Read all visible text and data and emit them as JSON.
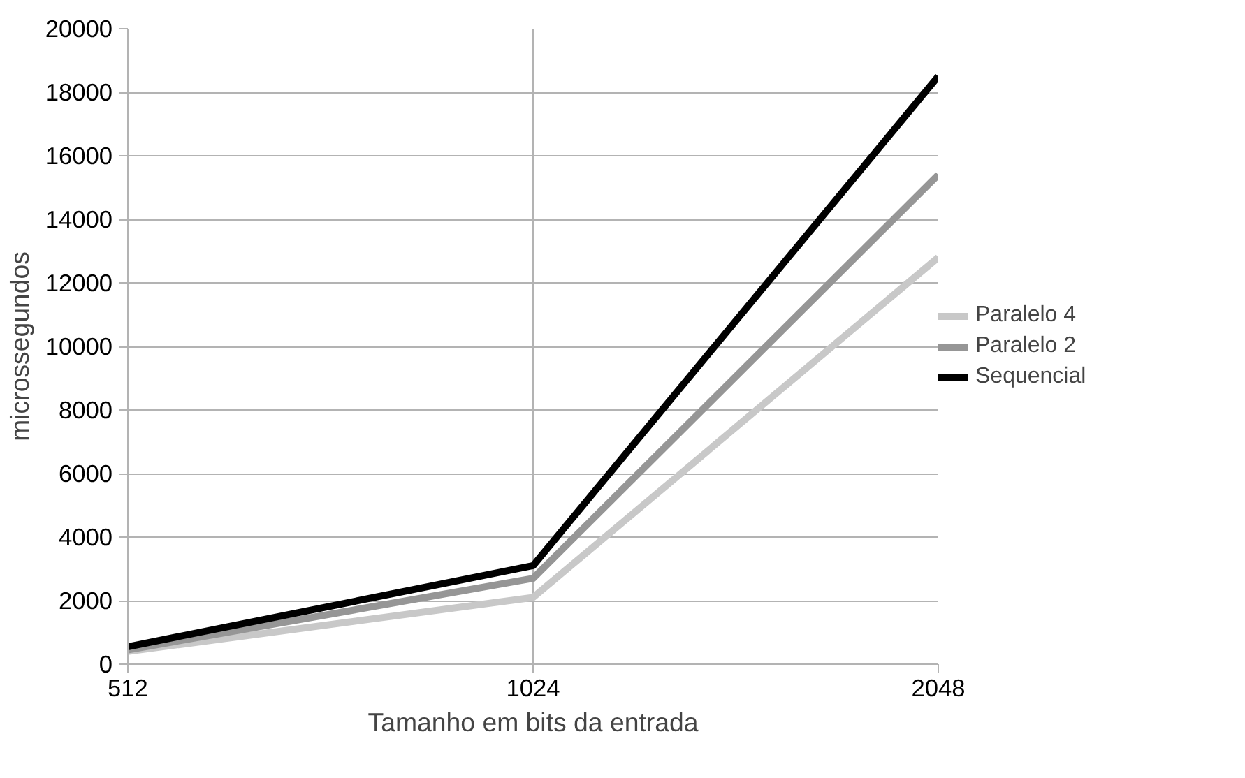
{
  "chart_data": {
    "type": "line",
    "xlabel": "Tamanho em bits da entrada",
    "ylabel": "microssegundos",
    "categories": [
      "512",
      "1024",
      "2048"
    ],
    "series": [
      {
        "name": "Paralelo 4",
        "color": "#c8c8c8",
        "values": [
          400,
          2100,
          12800
        ]
      },
      {
        "name": "Paralelo 2",
        "color": "#969696",
        "values": [
          450,
          2700,
          15400
        ]
      },
      {
        "name": "Sequencial",
        "color": "#000000",
        "values": [
          550,
          3100,
          18500
        ]
      }
    ],
    "ylim": [
      0,
      20000
    ],
    "yticks": [
      0,
      2000,
      4000,
      6000,
      8000,
      10000,
      12000,
      14000,
      16000,
      18000,
      20000
    ],
    "grid": true,
    "legend": "right",
    "line_style": "solid",
    "marker": "none"
  }
}
